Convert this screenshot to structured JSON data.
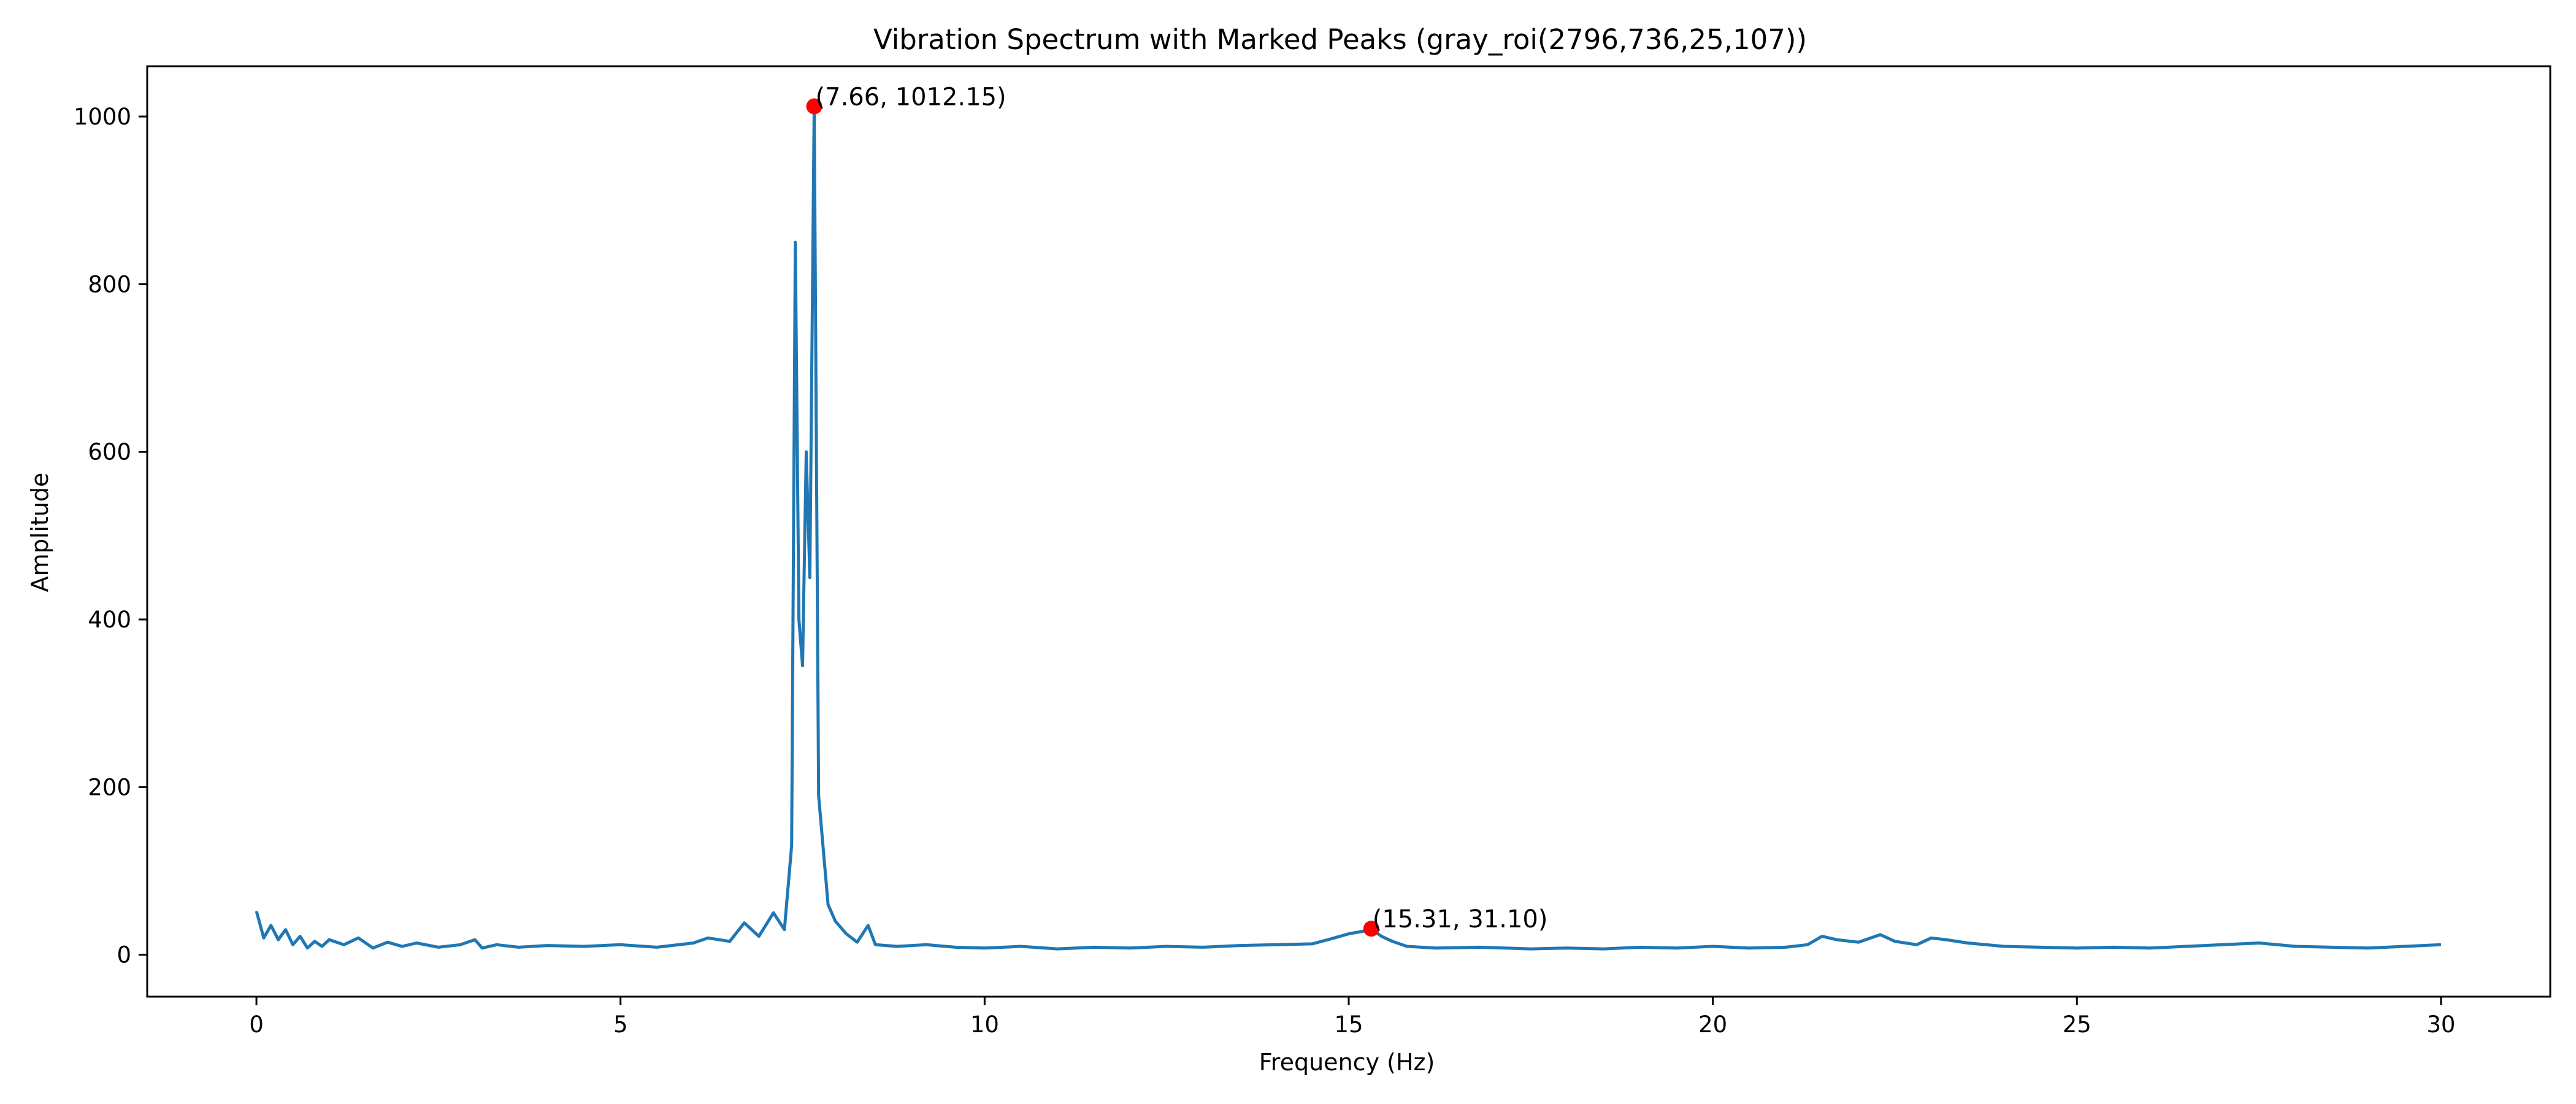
{
  "chart_data": {
    "type": "line",
    "title": "Vibration Spectrum with Marked Peaks (gray_roi(2796,736,25,107))",
    "xlabel": "Frequency (Hz)",
    "ylabel": "Amplitude",
    "xlim": [
      -1.5,
      31.5
    ],
    "ylim": [
      -50,
      1060
    ],
    "xticks": [
      0,
      5,
      10,
      15,
      20,
      25,
      30
    ],
    "yticks": [
      0,
      200,
      400,
      600,
      800,
      1000
    ],
    "grid": false,
    "line_color": "#1f77b4",
    "marker_color": "#ff0000",
    "series": [
      {
        "x": [
          0.0,
          0.1,
          0.2,
          0.3,
          0.4,
          0.5,
          0.6,
          0.7,
          0.8,
          0.9,
          1.0,
          1.2,
          1.4,
          1.6,
          1.8,
          2.0,
          2.2,
          2.5,
          2.8,
          3.0,
          3.1,
          3.3,
          3.6,
          4.0,
          4.5,
          5.0,
          5.5,
          6.0,
          6.2,
          6.5,
          6.7,
          6.9,
          7.1,
          7.25,
          7.35,
          7.4,
          7.45,
          7.5,
          7.55,
          7.6,
          7.66,
          7.72,
          7.78,
          7.85,
          7.95,
          8.1,
          8.25,
          8.4,
          8.5,
          8.8,
          9.2,
          9.6,
          10.0,
          10.5,
          11.0,
          11.5,
          12.0,
          12.5,
          13.0,
          13.5,
          14.0,
          14.5,
          14.8,
          15.0,
          15.2,
          15.31,
          15.45,
          15.6,
          15.8,
          16.2,
          16.8,
          17.5,
          18.0,
          18.5,
          19.0,
          19.5,
          20.0,
          20.5,
          21.0,
          21.3,
          21.5,
          21.7,
          22.0,
          22.3,
          22.5,
          22.8,
          23.0,
          23.2,
          23.5,
          24.0,
          24.5,
          25.0,
          25.5,
          26.0,
          26.5,
          27.0,
          27.5,
          28.0,
          28.5,
          29.0,
          29.5,
          30.0
        ],
        "y": [
          52,
          20,
          35,
          18,
          30,
          12,
          22,
          8,
          16,
          10,
          18,
          12,
          20,
          8,
          15,
          10,
          14,
          9,
          12,
          18,
          8,
          12,
          9,
          11,
          10,
          12,
          9,
          14,
          20,
          16,
          38,
          22,
          50,
          30,
          130,
          850,
          400,
          345,
          600,
          450,
          1012.15,
          190,
          130,
          60,
          40,
          25,
          15,
          35,
          12,
          10,
          12,
          9,
          8,
          10,
          7,
          9,
          8,
          10,
          9,
          11,
          12,
          13,
          20,
          25,
          28,
          31.1,
          22,
          16,
          10,
          8,
          9,
          7,
          8,
          7,
          9,
          8,
          10,
          8,
          9,
          12,
          22,
          18,
          15,
          24,
          16,
          12,
          20,
          18,
          14,
          10,
          9,
          8,
          9,
          8,
          10,
          12,
          14,
          10,
          9,
          8,
          10,
          12
        ]
      }
    ],
    "peaks": [
      {
        "x": 7.66,
        "y": 1012.15,
        "label": "(7.66, 1012.15)"
      },
      {
        "x": 15.31,
        "y": 31.1,
        "label": "(15.31, 31.10)"
      }
    ]
  }
}
